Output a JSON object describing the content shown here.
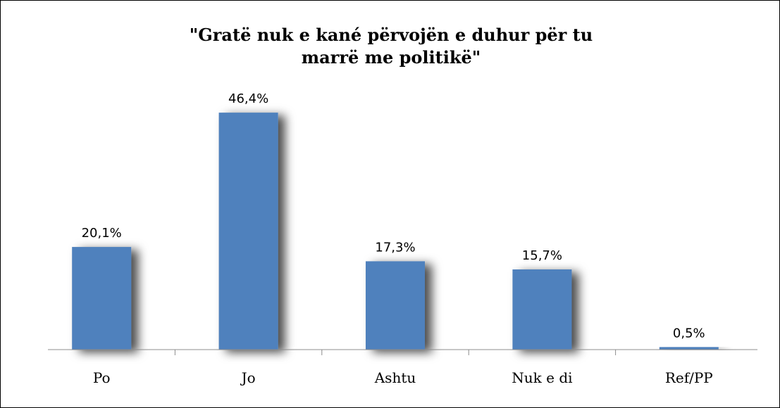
{
  "chart_data": {
    "type": "bar",
    "title": "\"Gratë nuk e kané përvojën e duhur për tu marrë me politikë\"",
    "categories": [
      "Po",
      "Jo",
      "Ashtu",
      "Nuk e di",
      "Ref/PP"
    ],
    "values": [
      20.1,
      46.4,
      17.3,
      15.7,
      0.5
    ],
    "value_labels": [
      "20,1%",
      "46,4%",
      "17,3%",
      "15,7%",
      "0,5%"
    ],
    "color": "#4f81bd"
  }
}
